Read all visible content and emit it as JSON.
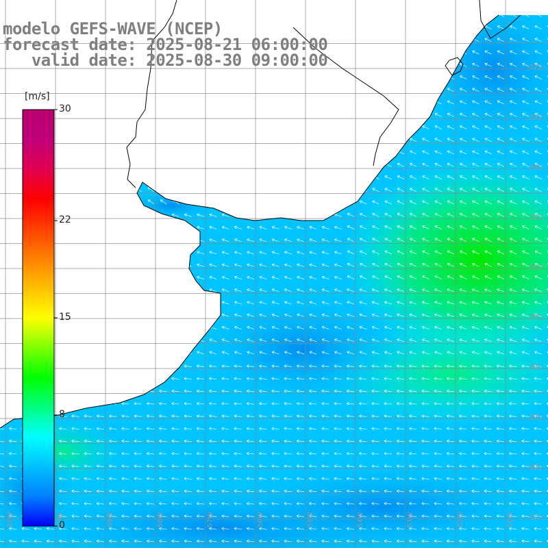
{
  "title": {
    "line1": "modelo GEFS-WAVE (NCEP)",
    "line2": "forecast date: 2025-08-21 06:00:00",
    "line3": "   valid date: 2025-08-30 09:00:00"
  },
  "colorbar": {
    "unit": "[m/s]",
    "min": 0,
    "max": 30,
    "ticks": [
      "30",
      "22",
      "15",
      "8",
      "0"
    ],
    "tick_values": [
      30,
      22,
      15,
      8,
      0
    ],
    "stops": [
      "#0000ff",
      "#0080ff",
      "#00c0ff",
      "#00ffff",
      "#00ff80",
      "#00ff00",
      "#80ff00",
      "#ffff00",
      "#ffc000",
      "#ff8000",
      "#ff4000",
      "#ff0000",
      "#e00050",
      "#c0007a",
      "#b8006e"
    ]
  },
  "map": {
    "lat_labels": [
      "32S",
      "33S",
      "34S",
      "35S",
      "36S",
      "37S",
      "38S",
      "39S",
      "40S",
      "41S"
    ],
    "lat_values": [
      -32,
      -33,
      -34,
      -35,
      -36,
      -37,
      -38,
      -39,
      -40,
      -41
    ],
    "lon_labels": [
      "61W",
      "60W",
      "59W",
      "58W",
      "57W",
      "56W",
      "55W",
      "54W",
      "53W",
      "52W",
      "51W"
    ],
    "lon_values": [
      -61,
      -60,
      -59,
      -58,
      -57,
      -56,
      -55,
      -54,
      -53,
      -52,
      -51
    ],
    "land_color": "#ffffff",
    "coast_color": "#000000",
    "grid_color": "#888888",
    "arrow_color": "#ffffff",
    "wind_direction": "from east-southeast (arrows pointing west / north-west)"
  }
}
